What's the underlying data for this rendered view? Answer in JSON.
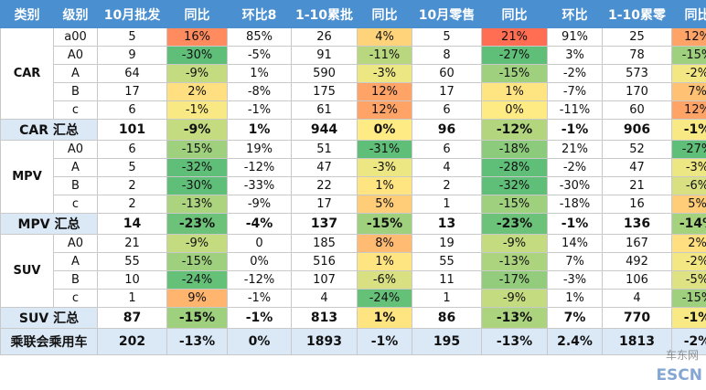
{
  "headers": [
    "类别",
    "级别",
    "10月批发",
    "同比",
    "环比8",
    "1-10累批",
    "同比",
    "10月零售",
    "同比",
    "环比",
    "1-10累零",
    "同比"
  ],
  "colors": {
    "header_bg": "#4a8fd0",
    "total_bg": "#dbe9f7",
    "red_text": "#d9261c"
  },
  "groups": [
    {
      "category": "CAR",
      "rows": [
        {
          "level": "a00",
          "cells": [
            "5",
            "16%",
            "85%",
            "26",
            "4%",
            "5",
            "21%",
            "91%",
            "25",
            "12%"
          ]
        },
        {
          "level": "A0",
          "cells": [
            "9",
            "-30%",
            "-5%",
            "91",
            "-11%",
            "8",
            "-27%",
            "3%",
            "78",
            "-15%"
          ]
        },
        {
          "level": "A",
          "cells": [
            "64",
            "-9%",
            "1%",
            "590",
            "-3%",
            "60",
            "-15%",
            "-2%",
            "573",
            "-2%"
          ]
        },
        {
          "level": "B",
          "cells": [
            "17",
            "2%",
            "-8%",
            "175",
            "12%",
            "17",
            "1%",
            "-7%",
            "170",
            "7%"
          ]
        },
        {
          "level": "c",
          "cells": [
            "6",
            "-1%",
            "-1%",
            "61",
            "12%",
            "6",
            "0%",
            "-11%",
            "60",
            "12%"
          ]
        }
      ],
      "summary": {
        "label": "CAR 汇总",
        "cells": [
          "101",
          "-9%",
          "1%",
          "944",
          "0%",
          "96",
          "-12%",
          "-1%",
          "906",
          "-1%"
        ]
      }
    },
    {
      "category": "MPV",
      "rows": [
        {
          "level": "A0",
          "cells": [
            "6",
            "-15%",
            "19%",
            "51",
            "-31%",
            "6",
            "-18%",
            "21%",
            "52",
            "-27%"
          ]
        },
        {
          "level": "A",
          "cells": [
            "5",
            "-32%",
            "-12%",
            "47",
            "-3%",
            "4",
            "-28%",
            "-2%",
            "47",
            "-3%"
          ]
        },
        {
          "level": "B",
          "cells": [
            "2",
            "-30%",
            "-33%",
            "22",
            "1%",
            "2",
            "-32%",
            "-30%",
            "21",
            "-6%"
          ]
        },
        {
          "level": "c",
          "cells": [
            "2",
            "-13%",
            "-9%",
            "17",
            "5%",
            "1",
            "-15%",
            "-18%",
            "16",
            "5%"
          ]
        }
      ],
      "summary": {
        "label": "MPV 汇总",
        "cells": [
          "14",
          "-23%",
          "-4%",
          "137",
          "-15%",
          "13",
          "-23%",
          "-1%",
          "136",
          "-14%"
        ]
      }
    },
    {
      "category": "SUV",
      "rows": [
        {
          "level": "A0",
          "cells": [
            "21",
            "-9%",
            "0",
            "185",
            "8%",
            "19",
            "-9%",
            "14%",
            "167",
            "2%"
          ]
        },
        {
          "level": "A",
          "cells": [
            "55",
            "-15%",
            "0%",
            "516",
            "1%",
            "55",
            "-13%",
            "7%",
            "492",
            "-2%"
          ]
        },
        {
          "level": "B",
          "cells": [
            "10",
            "-24%",
            "-12%",
            "107",
            "-6%",
            "11",
            "-17%",
            "-3%",
            "106",
            "-5%"
          ]
        },
        {
          "level": "c",
          "cells": [
            "1",
            "9%",
            "-1%",
            "4",
            "-24%",
            "1",
            "-9%",
            "1%",
            "4",
            "-15%"
          ]
        }
      ],
      "summary": {
        "label": "SUV 汇总",
        "cells": [
          "87",
          "-15%",
          "-1%",
          "813",
          "1%",
          "86",
          "-13%",
          "7%",
          "770",
          "-1%"
        ]
      }
    }
  ],
  "total": {
    "label": "乘联会乘用车",
    "cells": [
      "202",
      "-13%",
      "0%",
      "1893",
      "-1%",
      "195",
      "-13%",
      "2.4%",
      "1813",
      "-2%"
    ]
  },
  "watermark": {
    "text": "ESCN",
    "sub": "车东网"
  }
}
